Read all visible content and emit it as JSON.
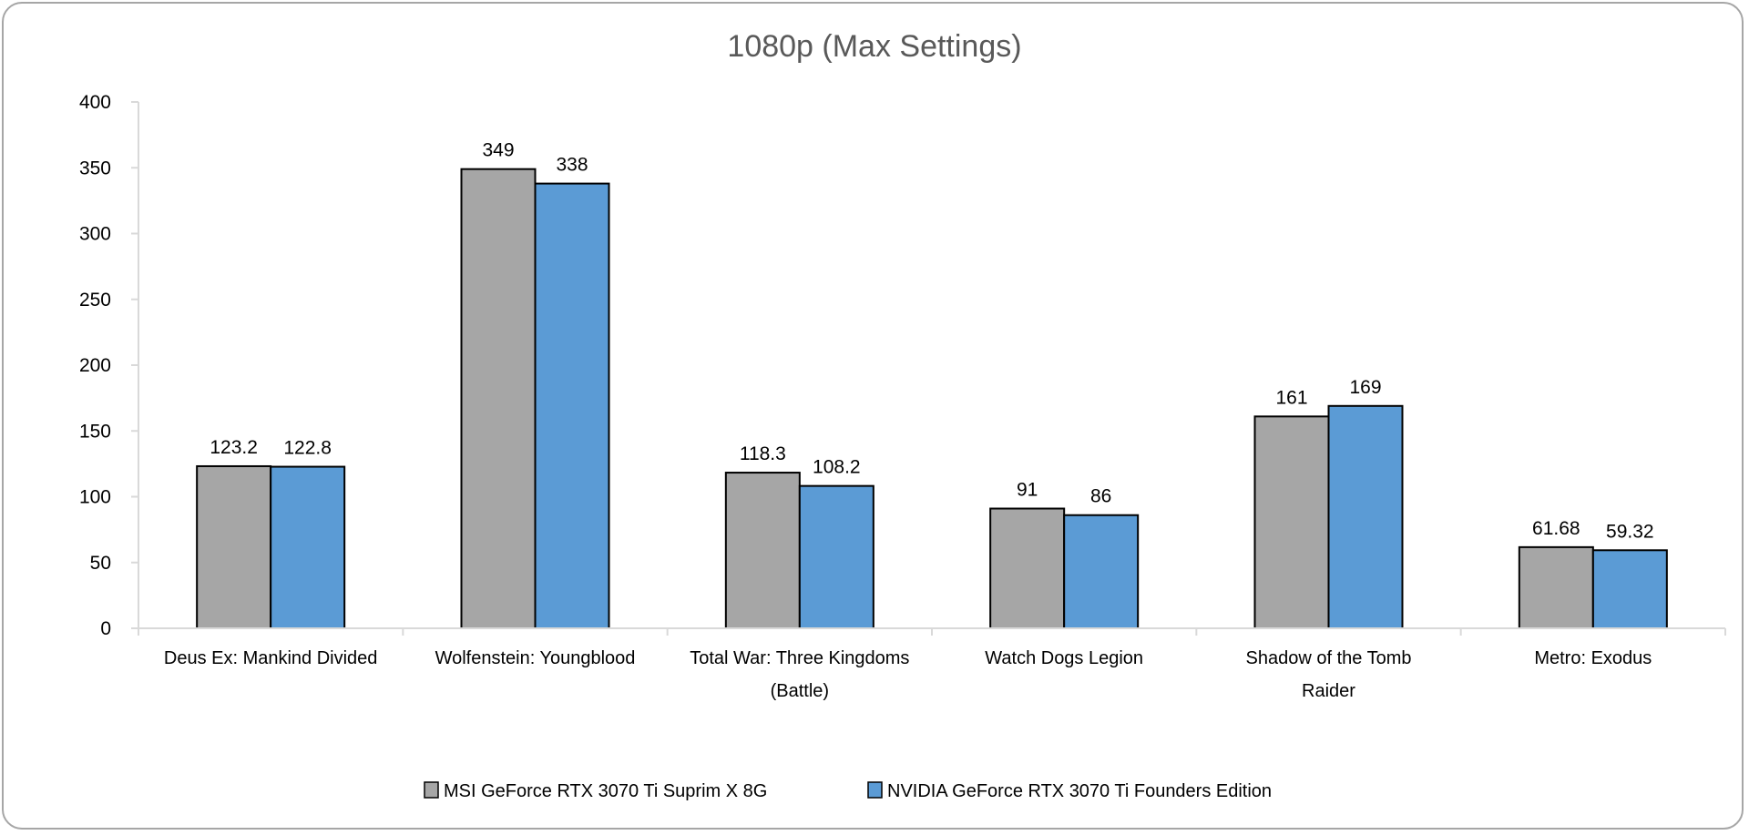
{
  "chart_data": {
    "type": "bar",
    "title": "1080p (Max Settings)",
    "xlabel": "",
    "ylabel": "",
    "ylim": [
      0,
      400
    ],
    "yticks": [
      0,
      50,
      100,
      150,
      200,
      250,
      300,
      350,
      400
    ],
    "grid": false,
    "legend_position": "bottom",
    "categories": [
      [
        "Deus Ex: Mankind Divided"
      ],
      [
        "Wolfenstein: Youngblood"
      ],
      [
        "Total War: Three Kingdoms",
        "(Battle)"
      ],
      [
        "Watch Dogs Legion"
      ],
      [
        "Shadow of the Tomb",
        "Raider"
      ],
      [
        "Metro: Exodus"
      ]
    ],
    "series": [
      {
        "name": "MSI GeForce RTX 3070 Ti Suprim X 8G",
        "color": "#a6a6a6",
        "values": [
          123.2,
          349,
          118.3,
          91,
          161,
          61.68
        ],
        "labels": [
          "123.2",
          "349",
          "118.3",
          "91",
          "161",
          "61.68"
        ]
      },
      {
        "name": "NVIDIA GeForce RTX 3070 Ti Founders Edition",
        "color": "#5b9bd5",
        "values": [
          122.8,
          338,
          108.2,
          86,
          169,
          59.32
        ],
        "labels": [
          "122.8",
          "338",
          "108.2",
          "86",
          "169",
          "59.32"
        ]
      }
    ]
  }
}
